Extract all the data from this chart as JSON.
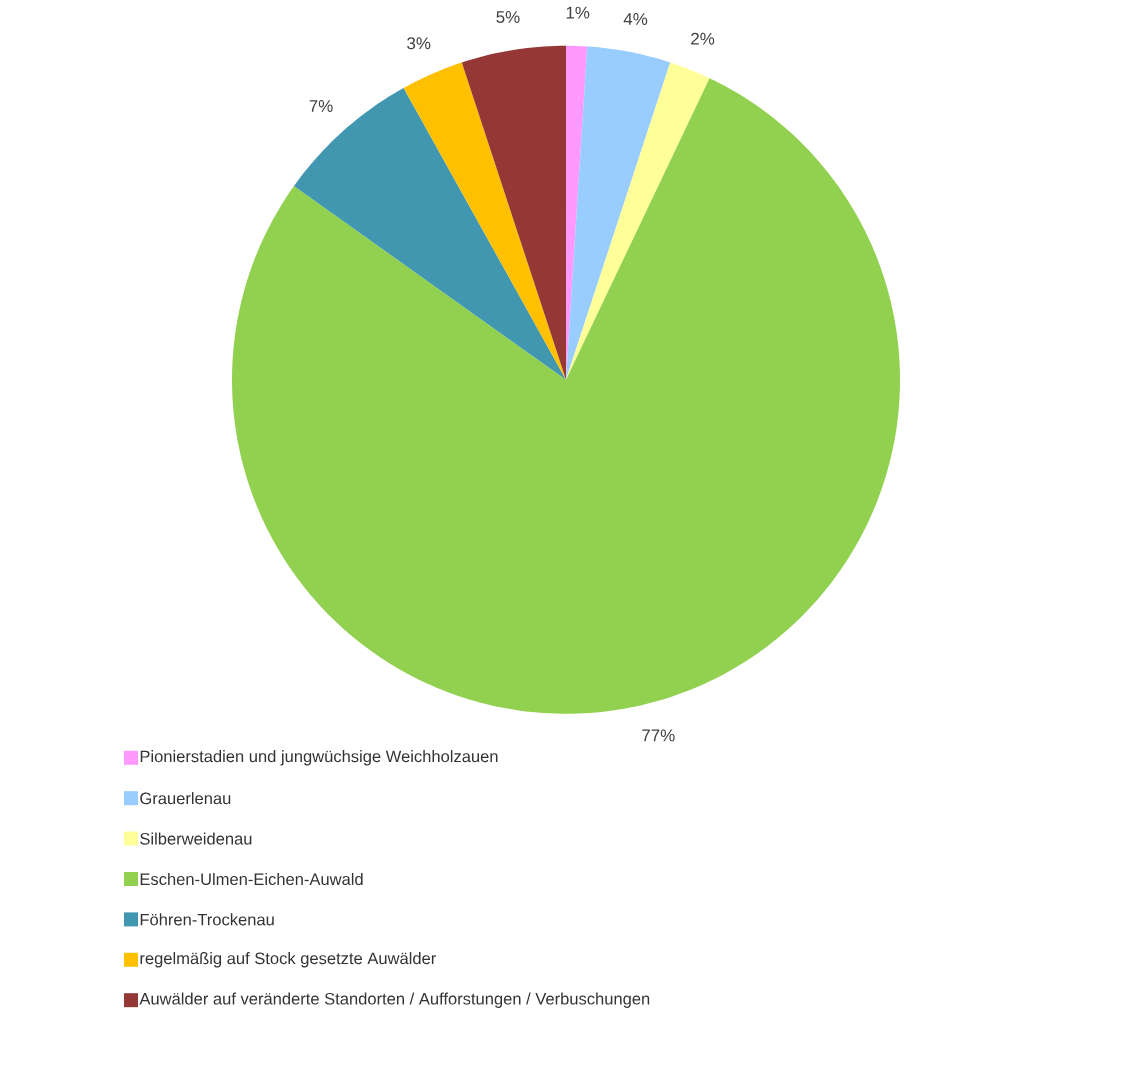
{
  "chart_data": {
    "type": "pie",
    "categories": [
      "Pionierstadien und jungwüchsige Weichholzauen",
      "Grauerlenau",
      "Silberweidenau",
      "Eschen-Ulmen-Eichen-Auwald",
      "Föhren-Trockenau",
      "regelmäßig auf Stock gesetzte Auwälder",
      "Auwälder auf veränderte Standorten / Aufforstungen / Verbuschungen"
    ],
    "values": [
      1,
      4,
      2,
      77,
      7,
      3,
      5
    ],
    "value_labels": [
      "1%",
      "4%",
      "2%",
      "77%",
      "7%",
      "3%",
      "5%"
    ],
    "colors": [
      "#ff99ff",
      "#99ccff",
      "#ffff99",
      "#92d050",
      "#4197b0",
      "#ffc000",
      "#953735"
    ],
    "legend": "bottom left"
  }
}
